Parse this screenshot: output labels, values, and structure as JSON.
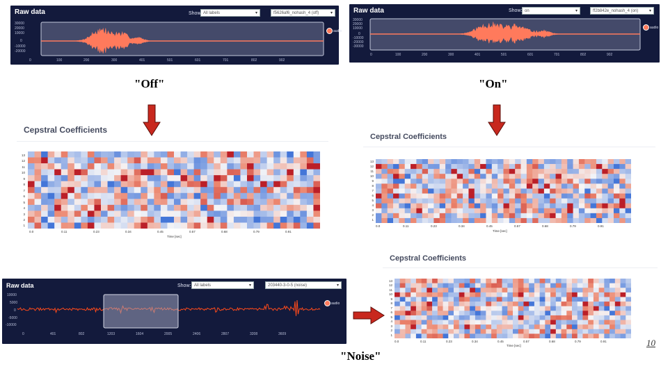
{
  "panels": [
    {
      "id": "off",
      "title": "Raw data",
      "show_label": "Show:",
      "filter_value": "All labels",
      "sample_value": "f5626af6_nohash_4 (off)",
      "legend": "audio",
      "y_ticks": [
        "30000",
        "20000",
        "10000",
        "0",
        "-10000",
        "-20000"
      ],
      "x_ticks": [
        "0",
        "100",
        "200",
        "300",
        "401",
        "501",
        "601",
        "701",
        "802",
        "902"
      ]
    },
    {
      "id": "on",
      "title": "Raw data",
      "show_label": "Show:",
      "filter_value": "on",
      "sample_value": "ff2b842e_nohash_4 (on)",
      "legend": "audio",
      "y_ticks": [
        "30000",
        "20000",
        "10000",
        "0",
        "-10000",
        "-20000",
        "-30000"
      ],
      "x_ticks": [
        "0",
        "100",
        "200",
        "300",
        "401",
        "501",
        "601",
        "701",
        "802",
        "902"
      ]
    },
    {
      "id": "noise",
      "title": "Raw data",
      "show_label": "Show:",
      "filter_value": "All labels",
      "sample_value": "203440-3-0-5 (noise)",
      "legend": "audio",
      "y_ticks": [
        "10000",
        "5000",
        "0",
        "-5000",
        "-10000"
      ],
      "x_ticks": [
        "0",
        "401",
        "802",
        "1203",
        "1604",
        "2005",
        "2406",
        "2807",
        "3208",
        "3609"
      ]
    }
  ],
  "captions": {
    "off": "\"Off\"",
    "on": "\"On\"",
    "noise": "\"Noise\""
  },
  "cepstral": [
    {
      "id": "off",
      "title": "Cepstral Coefficients",
      "y_ticks": [
        "13",
        "12",
        "11",
        "10",
        "9",
        "8",
        "7",
        "6",
        "5",
        "4",
        "3",
        "2",
        "1"
      ],
      "x_ticks": [
        "0.0",
        "0.11",
        "0.23",
        "0.34",
        "0.45",
        "0.57",
        "0.68",
        "0.79",
        "0.91"
      ],
      "xlabel": "Time [sec]"
    },
    {
      "id": "on",
      "title": "Cepstral Coefficients",
      "y_ticks": [
        "13",
        "12",
        "11",
        "10",
        "9",
        "8",
        "7",
        "6",
        "5",
        "4",
        "3",
        "2",
        "1"
      ],
      "x_ticks": [
        "0.0",
        "0.11",
        "0.23",
        "0.34",
        "0.45",
        "0.57",
        "0.68",
        "0.79",
        "0.91"
      ],
      "xlabel": "Time [sec]"
    },
    {
      "id": "noise",
      "title": "Cepstral Coefficients",
      "y_ticks": [
        "13",
        "12",
        "11",
        "10",
        "9",
        "8",
        "7",
        "6",
        "5",
        "4",
        "3",
        "2",
        "1"
      ],
      "x_ticks": [
        "0.0",
        "0.11",
        "0.23",
        "0.34",
        "0.45",
        "0.57",
        "0.68",
        "0.79",
        "0.91"
      ],
      "xlabel": "Time [sec]"
    }
  ],
  "page_number": "10",
  "colors": {
    "panel_bg": "#131a3c",
    "waveform": "#ff7a5c",
    "noise_waveform": "#ff4a1a",
    "arrow": "#c8281e",
    "heat_cold": "#3b6fd6",
    "heat_hot": "#b4101e"
  }
}
